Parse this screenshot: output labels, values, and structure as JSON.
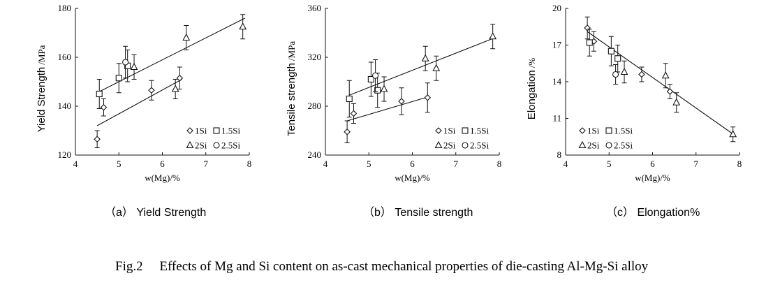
{
  "figure": {
    "caption": "Fig.2  Effects of Mg and Si content on as-cast mechanical properties of die-casting Al-Mg-Si alloy"
  },
  "chart_data": [
    {
      "type": "scatter",
      "panel_caption": "（a） Yield Strength",
      "ylabel": "Yield Strength",
      "yunit": "/MPa",
      "xlabel": "w(Mg)/%",
      "xlim": [
        4,
        8
      ],
      "ylim": [
        120,
        180
      ],
      "xticks": [
        4,
        5,
        6,
        7,
        8
      ],
      "yticks": [
        120,
        140,
        160,
        180
      ],
      "legend_position": "bottom-right",
      "series": [
        {
          "name": "1Si",
          "marker": "diamond",
          "points": [
            {
              "x": 4.5,
              "y": 126.5,
              "err": 3.5
            },
            {
              "x": 4.65,
              "y": 139.5,
              "err": 3.5
            },
            {
              "x": 5.75,
              "y": 146.5,
              "err": 4
            },
            {
              "x": 6.4,
              "y": 151.5,
              "err": 4.5
            }
          ]
        },
        {
          "name": "1.5Si",
          "marker": "square",
          "points": [
            {
              "x": 4.55,
              "y": 145,
              "err": 6
            },
            {
              "x": 5.0,
              "y": 151.5,
              "err": 6
            },
            {
              "x": 5.2,
              "y": 156.5,
              "err": 6.5
            }
          ]
        },
        {
          "name": "2Si",
          "marker": "triangle",
          "points": [
            {
              "x": 5.35,
              "y": 156,
              "err": 5
            },
            {
              "x": 6.3,
              "y": 147,
              "err": 4
            },
            {
              "x": 6.55,
              "y": 168,
              "err": 5
            },
            {
              "x": 7.85,
              "y": 172.5,
              "err": 5
            }
          ]
        },
        {
          "name": "2.5Si",
          "marker": "circle",
          "points": [
            {
              "x": 5.15,
              "y": 158,
              "err": 6.5
            }
          ]
        }
      ],
      "trendlines": [
        {
          "x": [
            4.5,
            6.45
          ],
          "y": [
            132,
            151
          ]
        },
        {
          "x": [
            4.5,
            7.9
          ],
          "y": [
            145.5,
            176
          ]
        }
      ]
    },
    {
      "type": "scatter",
      "panel_caption": "（b） Tensile strength",
      "ylabel": "Tensile strength",
      "yunit": "/MPa",
      "xlabel": "w(Mg)/%",
      "xlim": [
        4,
        8
      ],
      "ylim": [
        240,
        360
      ],
      "xticks": [
        4,
        5,
        6,
        7,
        8
      ],
      "yticks": [
        240,
        280,
        320,
        360
      ],
      "legend_position": "bottom-right",
      "series": [
        {
          "name": "1Si",
          "marker": "diamond",
          "points": [
            {
              "x": 4.5,
              "y": 259,
              "err": 9
            },
            {
              "x": 4.65,
              "y": 274,
              "err": 8
            },
            {
              "x": 5.75,
              "y": 284,
              "err": 11
            },
            {
              "x": 6.35,
              "y": 287,
              "err": 12
            }
          ]
        },
        {
          "name": "1.5Si",
          "marker": "square",
          "points": [
            {
              "x": 4.55,
              "y": 286,
              "err": 15
            },
            {
              "x": 5.05,
              "y": 302,
              "err": 14
            },
            {
              "x": 5.2,
              "y": 293,
              "err": 14
            }
          ]
        },
        {
          "name": "2Si",
          "marker": "triangle",
          "points": [
            {
              "x": 5.35,
              "y": 294,
              "err": 10
            },
            {
              "x": 6.3,
              "y": 319,
              "err": 10
            },
            {
              "x": 6.55,
              "y": 311,
              "err": 10
            },
            {
              "x": 7.85,
              "y": 337,
              "err": 10
            }
          ]
        },
        {
          "name": "2.5Si",
          "marker": "circle",
          "points": [
            {
              "x": 5.15,
              "y": 305,
              "err": 13
            }
          ]
        }
      ],
      "trendlines": [
        {
          "x": [
            4.5,
            6.4
          ],
          "y": [
            268,
            288
          ]
        },
        {
          "x": [
            4.55,
            7.9
          ],
          "y": [
            289,
            336
          ]
        }
      ]
    },
    {
      "type": "scatter",
      "panel_caption": "（c） Elongation%",
      "ylabel": "Elongation",
      "yunit": "/%",
      "xlabel": "w(Mg)/%",
      "xlim": [
        4,
        8
      ],
      "ylim": [
        8,
        20
      ],
      "xticks": [
        4,
        5,
        6,
        7,
        8
      ],
      "yticks": [
        8,
        11,
        14,
        17,
        20
      ],
      "legend_position": "bottom-left",
      "series": [
        {
          "name": "1Si",
          "marker": "diamond",
          "points": [
            {
              "x": 4.5,
              "y": 18.4,
              "err": 0.9
            },
            {
              "x": 4.65,
              "y": 17.3,
              "err": 0.8
            },
            {
              "x": 5.75,
              "y": 14.6,
              "err": 0.6
            },
            {
              "x": 6.4,
              "y": 13.2,
              "err": 0.6
            }
          ]
        },
        {
          "name": "1.5Si",
          "marker": "square",
          "points": [
            {
              "x": 4.55,
              "y": 17.2,
              "err": 1.1
            },
            {
              "x": 5.05,
              "y": 16.5,
              "err": 1.2
            },
            {
              "x": 5.2,
              "y": 15.9,
              "err": 1.1
            }
          ]
        },
        {
          "name": "2Si",
          "marker": "triangle",
          "points": [
            {
              "x": 5.35,
              "y": 14.8,
              "err": 0.9
            },
            {
              "x": 6.3,
              "y": 14.5,
              "err": 1.0
            },
            {
              "x": 6.55,
              "y": 12.3,
              "err": 0.8
            },
            {
              "x": 7.85,
              "y": 9.7,
              "err": 0.6
            }
          ]
        },
        {
          "name": "2.5Si",
          "marker": "circle",
          "points": [
            {
              "x": 5.15,
              "y": 14.6,
              "err": 0.8
            }
          ]
        }
      ],
      "trendlines": [
        {
          "x": [
            4.5,
            7.9
          ],
          "y": [
            18.1,
            9.6
          ]
        }
      ]
    }
  ]
}
